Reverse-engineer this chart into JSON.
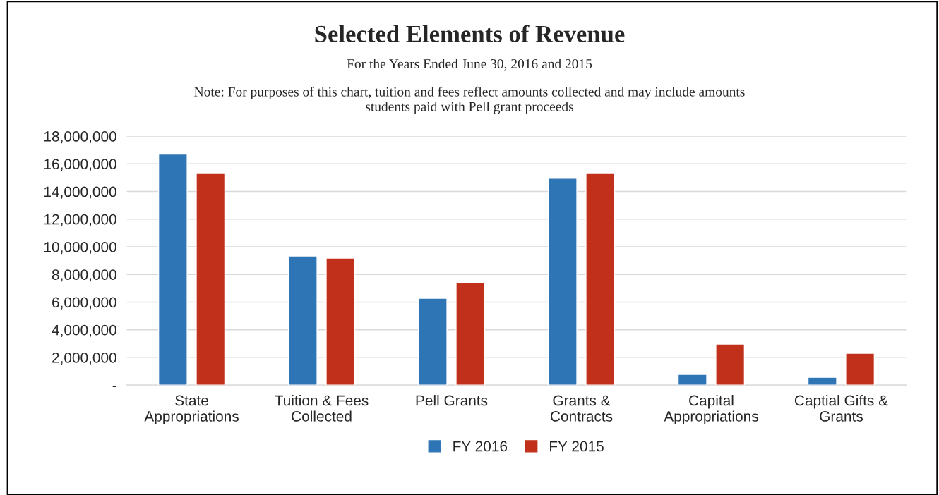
{
  "chart_data": {
    "type": "bar",
    "title": "Selected Elements of Revenue",
    "subtitle": "For the Years Ended June 30, 2016 and 2015",
    "annotations": [
      "Note: For purposes of this chart, tuition and fees reflect amounts collected and may include amounts\nstudents paid with Pell grant proceeds"
    ],
    "categories": [
      "State\nAppropriations",
      "Tuition & Fees\nCollected",
      "Pell Grants",
      "Grants &\nContracts",
      "Capital\nAppropriations",
      "Captial Gifts &\nGrants"
    ],
    "series": [
      {
        "name": "FY 2016",
        "color": "#2e75b6",
        "values": [
          16700000,
          9340000,
          6280000,
          14950000,
          770000,
          560000
        ]
      },
      {
        "name": "FY 2015",
        "color": "#c0301a",
        "values": [
          15300000,
          9180000,
          7400000,
          15300000,
          2960000,
          2300000
        ]
      }
    ],
    "ylim": [
      0,
      18000000
    ],
    "yticks": [
      {
        "value": 0,
        "label": "-"
      },
      {
        "value": 2000000,
        "label": "2,000,000"
      },
      {
        "value": 4000000,
        "label": "4,000,000"
      },
      {
        "value": 6000000,
        "label": "6,000,000"
      },
      {
        "value": 8000000,
        "label": "8,000,000"
      },
      {
        "value": 10000000,
        "label": "10,000,000"
      },
      {
        "value": 12000000,
        "label": "12,000,000"
      },
      {
        "value": 14000000,
        "label": "14,000,000"
      },
      {
        "value": 16000000,
        "label": "16,000,000"
      },
      {
        "value": 18000000,
        "label": "18,000,000"
      }
    ],
    "grid": "y",
    "legend": "bottom"
  }
}
